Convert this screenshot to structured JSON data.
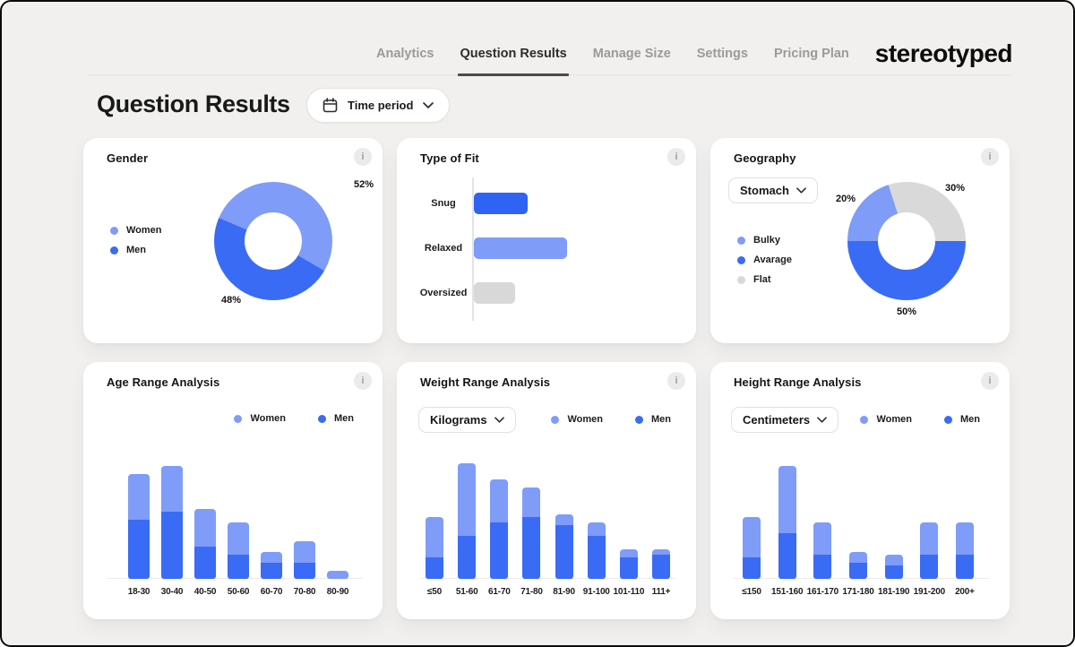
{
  "brand": {
    "logo": "stereotyped"
  },
  "nav": {
    "tabs": [
      {
        "label": "Analytics",
        "active": false
      },
      {
        "label": "Question Results",
        "active": true
      },
      {
        "label": "Manage Size",
        "active": false
      },
      {
        "label": "Settings",
        "active": false
      },
      {
        "label": "Pricing Plan",
        "active": false
      }
    ]
  },
  "page": {
    "title": "Question Results",
    "time_period_label": "Time period"
  },
  "icons": {
    "info_glyph": "i"
  },
  "palette": {
    "women_light_blue": "#7E9CF8",
    "men_blue": "#3A6BF5",
    "accent_dark_blue": "#2F63F3",
    "neutral_gray": "#D8D8D8",
    "background": "#F2F0EE",
    "card": "#FFFFFF"
  },
  "cards": {
    "gender": {
      "title": "Gender",
      "legend": [
        {
          "label": "Women",
          "color": "#7E9CF8"
        },
        {
          "label": "Men",
          "color": "#3A6BF5"
        }
      ],
      "chart_data": {
        "type": "donut",
        "segments": [
          {
            "name": "Women",
            "value": 52,
            "color": "#7E9CF8"
          },
          {
            "name": "Men",
            "value": 48,
            "color": "#3A6BF5"
          }
        ],
        "labels": {
          "women": "52%",
          "men": "48%"
        }
      }
    },
    "fit": {
      "title": "Type of Fit",
      "chart_data": {
        "type": "hbar",
        "note": "values estimated from bar lengths, relative units",
        "rows": [
          {
            "label": "Snug",
            "value": 30,
            "color": "#2F63F3"
          },
          {
            "label": "Relaxed",
            "value": 52,
            "color": "#7E9CF8"
          },
          {
            "label": "Oversized",
            "value": 23,
            "color": "#D8D8D8"
          }
        ]
      }
    },
    "geography": {
      "title": "Geography",
      "selector_value": "Stomach",
      "legend": [
        {
          "label": "Bulky",
          "color": "#7E9CF8"
        },
        {
          "label": "Avarage",
          "color": "#3A6BF5"
        },
        {
          "label": "Flat",
          "color": "#D9D9D9"
        }
      ],
      "chart_data": {
        "type": "donut",
        "segments": [
          {
            "name": "Bulky",
            "value": 20,
            "color": "#7E9CF8"
          },
          {
            "name": "Flat",
            "value": 30,
            "color": "#D9D9D9"
          },
          {
            "name": "Avarage",
            "value": 50,
            "color": "#3A6BF5"
          }
        ],
        "labels": {
          "bulky": "20%",
          "flat": "30%",
          "avarage": "50%"
        }
      }
    },
    "age": {
      "title": "Age Range Analysis",
      "legend": [
        {
          "label": "Women",
          "color": "#7E9CF8"
        },
        {
          "label": "Men",
          "color": "#3A6BF5"
        }
      ],
      "chart_data": {
        "type": "stacked-bar",
        "note": "values estimated from bar heights, relative units",
        "categories": [
          "18-30",
          "30-40",
          "40-50",
          "50-60",
          "60-70",
          "70-80",
          "80-90"
        ],
        "series": [
          {
            "name": "Men",
            "color": "#3A6BF5",
            "values": [
              22,
              25,
              12,
              9,
              6,
              6,
              0
            ]
          },
          {
            "name": "Women",
            "color": "#7E9CF8",
            "values": [
              17,
              17,
              14,
              12,
              4,
              8,
              3
            ]
          }
        ]
      }
    },
    "weight": {
      "title": "Weight Range Analysis",
      "selector_value": "Kilograms",
      "legend": [
        {
          "label": "Women",
          "color": "#7E9CF8"
        },
        {
          "label": "Men",
          "color": "#3A6BF5"
        }
      ],
      "chart_data": {
        "type": "stacked-bar",
        "note": "values estimated from bar heights, relative units",
        "categories": [
          "≤50",
          "51-60",
          "61-70",
          "71-80",
          "81-90",
          "91-100",
          "101-110",
          "111+"
        ],
        "series": [
          {
            "name": "Men",
            "color": "#3A6BF5",
            "values": [
              8,
              16,
              21,
              23,
              20,
              16,
              8,
              9
            ]
          },
          {
            "name": "Women",
            "color": "#7E9CF8",
            "values": [
              15,
              27,
              16,
              11,
              4,
              5,
              3,
              2
            ]
          }
        ]
      }
    },
    "height": {
      "title": "Height Range Analysis",
      "selector_value": "Centimeters",
      "legend": [
        {
          "label": "Women",
          "color": "#7E9CF8"
        },
        {
          "label": "Men",
          "color": "#3A6BF5"
        }
      ],
      "chart_data": {
        "type": "stacked-bar",
        "note": "values estimated from bar heights, relative units",
        "categories": [
          "≤150",
          "151-160",
          "161-170",
          "171-180",
          "181-190",
          "191-200",
          "200+"
        ],
        "series": [
          {
            "name": "Men",
            "color": "#3A6BF5",
            "values": [
              8,
              17,
              9,
              6,
              5,
              9,
              9
            ]
          },
          {
            "name": "Women",
            "color": "#7E9CF8",
            "values": [
              15,
              25,
              12,
              4,
              4,
              12,
              12
            ]
          }
        ]
      }
    }
  }
}
